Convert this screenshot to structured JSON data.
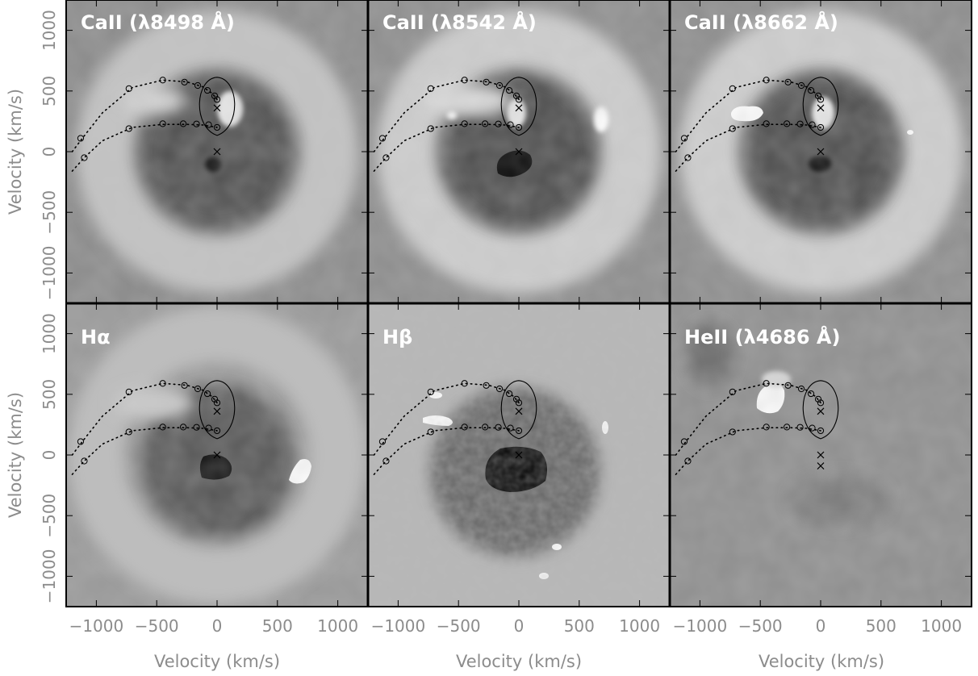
{
  "figure": {
    "panels": [
      {
        "title": "CaII (λ8498 Å)"
      },
      {
        "title": "CaII (λ8542 Å)"
      },
      {
        "title": "CaII (λ8662 Å)"
      },
      {
        "title": "Hα"
      },
      {
        "title": "Hβ"
      },
      {
        "title": "HeII (λ4686 Å)"
      }
    ],
    "xlabel": "Velocity (km/s)",
    "ylabel": "Velocity (km/s)",
    "xticks": [
      "−1000",
      "−500",
      "0",
      "500",
      "1000"
    ],
    "yticks": [
      "1000",
      "500",
      "0",
      "−500",
      "−1000"
    ]
  },
  "chart_data": [
    {
      "type": "heatmap",
      "title": "CaII (λ8498 Å)",
      "xlabel": "",
      "ylabel": "Velocity (km/s)",
      "xlim": [
        -1250,
        1250
      ],
      "ylim": [
        -1250,
        1250
      ],
      "grid": false,
      "features": [
        {
          "kind": "dark",
          "x": -20,
          "y": -70
        },
        {
          "kind": "bright",
          "x": 30,
          "y": 300
        }
      ]
    },
    {
      "type": "heatmap",
      "title": "CaII (λ8542 Å)",
      "xlabel": "",
      "ylabel": "",
      "xlim": [
        -1250,
        1250
      ],
      "ylim": [
        -1250,
        1250
      ],
      "grid": false,
      "features": [
        {
          "kind": "dark",
          "x": -60,
          "y": -80
        },
        {
          "kind": "bright",
          "x": 700,
          "y": 300
        },
        {
          "kind": "bright",
          "x": -500,
          "y": 300
        }
      ]
    },
    {
      "type": "heatmap",
      "title": "CaII (λ8662 Å)",
      "xlabel": "",
      "ylabel": "",
      "xlim": [
        -1250,
        1250
      ],
      "ylim": [
        -1250,
        1250
      ],
      "grid": false,
      "features": [
        {
          "kind": "dark",
          "x": -20,
          "y": -70
        },
        {
          "kind": "bright",
          "x": -600,
          "y": 350
        },
        {
          "kind": "bright",
          "x": 700,
          "y": 180
        }
      ]
    },
    {
      "type": "heatmap",
      "title": "Hα",
      "xlabel": "Velocity (km/s)",
      "ylabel": "Velocity (km/s)",
      "xlim": [
        -1250,
        1250
      ],
      "ylim": [
        -1250,
        1250
      ],
      "grid": false,
      "features": [
        {
          "kind": "dark",
          "x": 0,
          "y": -100
        },
        {
          "kind": "bright",
          "x": 700,
          "y": -120
        }
      ]
    },
    {
      "type": "heatmap",
      "title": "Hβ",
      "xlabel": "Velocity (km/s)",
      "ylabel": "",
      "xlim": [
        -1250,
        1250
      ],
      "ylim": [
        -1250,
        1250
      ],
      "grid": false,
      "features": [
        {
          "kind": "dark",
          "x": -60,
          "y": -120
        },
        {
          "kind": "bright",
          "x": -600,
          "y": 330
        },
        {
          "kind": "bright",
          "x": -550,
          "y": 500
        }
      ]
    },
    {
      "type": "heatmap",
      "title": "HeII (λ4686 Å)",
      "xlabel": "Velocity (km/s)",
      "ylabel": "",
      "xlim": [
        -1250,
        1250
      ],
      "ylim": [
        -1250,
        1250
      ],
      "grid": false,
      "features": [
        {
          "kind": "bright",
          "x": -450,
          "y": 480
        }
      ]
    }
  ],
  "overlay": {
    "stream_upper": [
      {
        "x": -1200,
        "y": 0
      },
      {
        "x": -1100,
        "y": 130
      },
      {
        "x": -950,
        "y": 320
      },
      {
        "x": -700,
        "y": 530
      },
      {
        "x": -450,
        "y": 590
      },
      {
        "x": -250,
        "y": 575
      },
      {
        "x": -120,
        "y": 535
      },
      {
        "x": -40,
        "y": 480
      },
      {
        "x": 0,
        "y": 430
      }
    ],
    "stream_lower": [
      {
        "x": -1200,
        "y": -160
      },
      {
        "x": -1100,
        "y": -50
      },
      {
        "x": -950,
        "y": 90
      },
      {
        "x": -700,
        "y": 200
      },
      {
        "x": -450,
        "y": 225
      },
      {
        "x": -250,
        "y": 225
      },
      {
        "x": -120,
        "y": 220
      },
      {
        "x": 0,
        "y": 200
      }
    ],
    "markers_upper": [
      {
        "x": -1130,
        "y": 110
      },
      {
        "x": -730,
        "y": 520
      },
      {
        "x": -450,
        "y": 590
      },
      {
        "x": -270,
        "y": 573
      },
      {
        "x": -160,
        "y": 545
      },
      {
        "x": -80,
        "y": 505
      },
      {
        "x": -20,
        "y": 460
      },
      {
        "x": 0,
        "y": 430
      }
    ],
    "markers_lower": [
      {
        "x": -1100,
        "y": -50
      },
      {
        "x": -730,
        "y": 190
      },
      {
        "x": -450,
        "y": 230
      },
      {
        "x": -280,
        "y": 230
      },
      {
        "x": -170,
        "y": 228
      },
      {
        "x": -70,
        "y": 222
      },
      {
        "x": 0,
        "y": 200
      }
    ],
    "roche_lobe": {
      "cx": 0,
      "cy": 400
    },
    "crosses_default": [
      {
        "x": 0,
        "y": 360
      },
      {
        "x": 0,
        "y": 0
      }
    ],
    "crosses_heii": [
      {
        "x": 0,
        "y": 360
      },
      {
        "x": 0,
        "y": 0
      },
      {
        "x": 0,
        "y": -90
      }
    ]
  }
}
